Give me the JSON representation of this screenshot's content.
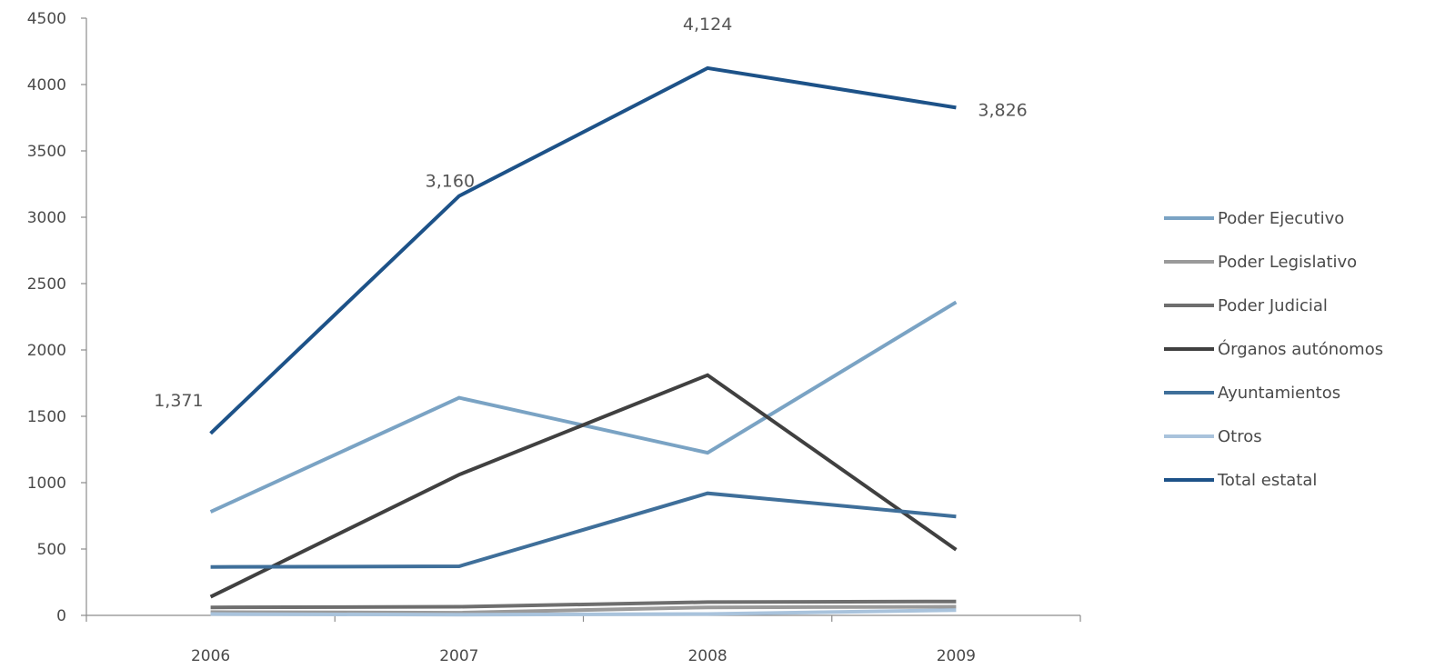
{
  "chart_data": {
    "type": "line",
    "title": "",
    "xlabel": "",
    "ylabel": "",
    "x": [
      "2006",
      "2007",
      "2008",
      "2009"
    ],
    "ylim": [
      0,
      4500
    ],
    "yticks": [
      0,
      500,
      1000,
      1500,
      2000,
      2500,
      3000,
      3500,
      4000,
      4500
    ],
    "ytick_labels": [
      "0",
      "500",
      "1000",
      "1500",
      "2000",
      "2500",
      "3000",
      "3500",
      "4000",
      "4500"
    ],
    "grid": false,
    "legend_position": "right",
    "series": [
      {
        "name": "Poder Ejecutivo",
        "color": "#7aa3c4",
        "values": [
          780,
          1640,
          1225,
          2360
        ]
      },
      {
        "name": "Poder Legislativo",
        "color": "#9a9a9a",
        "values": [
          25,
          20,
          60,
          65
        ]
      },
      {
        "name": "Poder Judicial",
        "color": "#6e6e6e",
        "values": [
          60,
          65,
          100,
          105
        ]
      },
      {
        "name": "Órganos autónomos",
        "color": "#404040",
        "values": [
          140,
          1060,
          1810,
          495
        ]
      },
      {
        "name": "Ayuntamientos",
        "color": "#3f6f9a",
        "values": [
          365,
          370,
          920,
          745
        ]
      },
      {
        "name": "Otros",
        "color": "#a9c3dc",
        "values": [
          10,
          5,
          10,
          40
        ]
      },
      {
        "name": "Total estatal",
        "color": "#1d5288",
        "values": [
          1371,
          3160,
          4124,
          3826
        ]
      }
    ],
    "data_labels": [
      {
        "series": "Total estatal",
        "index": 0,
        "text": "1,371"
      },
      {
        "series": "Total estatal",
        "index": 1,
        "text": "3,160"
      },
      {
        "series": "Total estatal",
        "index": 2,
        "text": "4,124"
      },
      {
        "series": "Total estatal",
        "index": 3,
        "text": "3,826"
      }
    ]
  }
}
